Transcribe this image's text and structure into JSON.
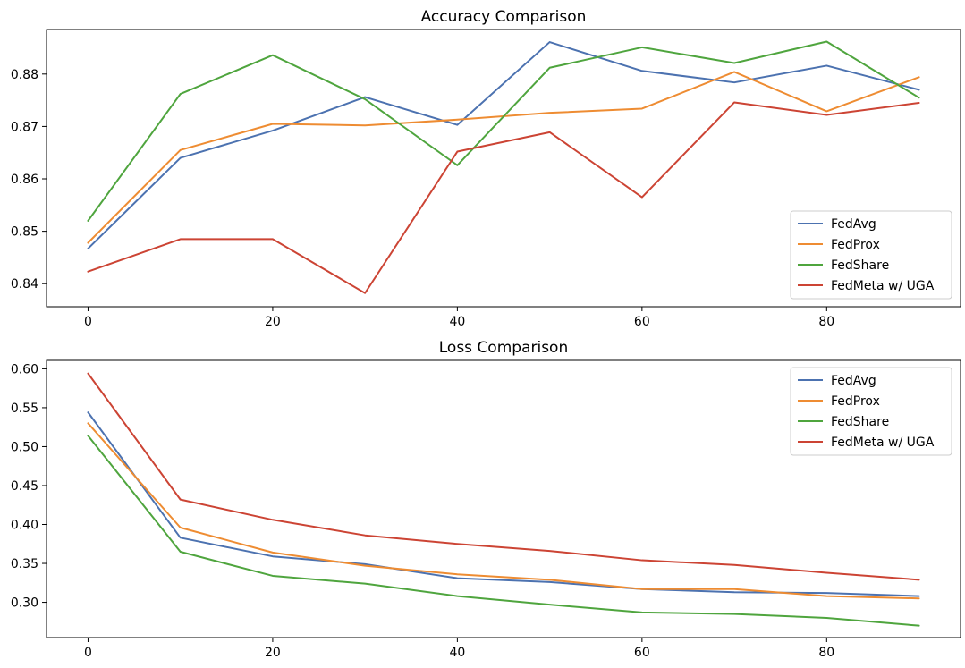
{
  "chart_data": [
    {
      "type": "line",
      "title": "Accuracy Comparison",
      "xlabel": "",
      "ylabel": "",
      "x": [
        0,
        10,
        20,
        30,
        40,
        50,
        60,
        70,
        80,
        90
      ],
      "xlim": [
        -4.5,
        94.5
      ],
      "ylim": [
        0.8356,
        0.8885
      ],
      "xticks": [
        0,
        20,
        40,
        60,
        80
      ],
      "yticks": [
        0.84,
        0.85,
        0.86,
        0.87,
        0.88
      ],
      "ytick_labels": [
        "0.84",
        "0.85",
        "0.86",
        "0.87",
        "0.88"
      ],
      "legend_position": "lower-right",
      "series": [
        {
          "name": "FedAvg",
          "color": "#4c72b0",
          "values": [
            0.8467,
            0.864,
            0.8692,
            0.8756,
            0.8703,
            0.8861,
            0.8806,
            0.8784,
            0.8816,
            0.877
          ]
        },
        {
          "name": "FedProx",
          "color": "#ee8c32",
          "values": [
            0.8478,
            0.8655,
            0.8705,
            0.8702,
            0.8713,
            0.8726,
            0.8734,
            0.8804,
            0.8729,
            0.8794
          ]
        },
        {
          "name": "FedShare",
          "color": "#4fa53e",
          "values": [
            0.852,
            0.8762,
            0.8836,
            0.8752,
            0.8626,
            0.8812,
            0.8851,
            0.8821,
            0.8862,
            0.8755
          ]
        },
        {
          "name": "FedMeta w/ UGA",
          "color": "#cc4434",
          "values": [
            0.8423,
            0.8485,
            0.8485,
            0.8382,
            0.8652,
            0.8689,
            0.8565,
            0.8746,
            0.8722,
            0.8745
          ]
        }
      ]
    },
    {
      "type": "line",
      "title": "Loss Comparison",
      "xlabel": "",
      "ylabel": "",
      "x": [
        0,
        10,
        20,
        30,
        40,
        50,
        60,
        70,
        80,
        90
      ],
      "xlim": [
        -4.5,
        94.5
      ],
      "ylim": [
        0.2547,
        0.6108
      ],
      "xticks": [
        0,
        20,
        40,
        60,
        80
      ],
      "yticks": [
        0.3,
        0.35,
        0.4,
        0.45,
        0.5,
        0.55,
        0.6
      ],
      "ytick_labels": [
        "0.30",
        "0.35",
        "0.40",
        "0.45",
        "0.50",
        "0.55",
        "0.60"
      ],
      "legend_position": "upper-right",
      "series": [
        {
          "name": "FedAvg",
          "color": "#4c72b0",
          "values": [
            0.544,
            0.383,
            0.359,
            0.349,
            0.331,
            0.326,
            0.317,
            0.313,
            0.312,
            0.308
          ]
        },
        {
          "name": "FedProx",
          "color": "#ee8c32",
          "values": [
            0.53,
            0.396,
            0.364,
            0.347,
            0.336,
            0.329,
            0.317,
            0.317,
            0.308,
            0.305
          ]
        },
        {
          "name": "FedShare",
          "color": "#4fa53e",
          "values": [
            0.514,
            0.365,
            0.334,
            0.324,
            0.308,
            0.297,
            0.287,
            0.285,
            0.28,
            0.27
          ]
        },
        {
          "name": "FedMeta w/ UGA",
          "color": "#cc4434",
          "values": [
            0.594,
            0.432,
            0.406,
            0.386,
            0.375,
            0.366,
            0.354,
            0.348,
            0.338,
            0.329
          ]
        }
      ]
    }
  ]
}
